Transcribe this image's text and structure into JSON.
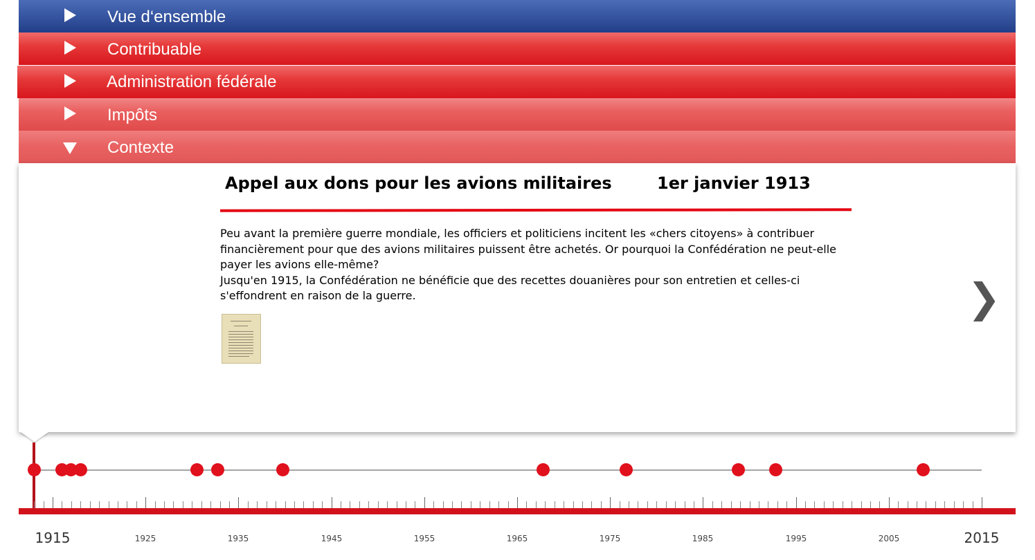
{
  "accordion": [
    {
      "label": "Vue d‘ensemble",
      "expanded": false
    },
    {
      "label": "Contribuable",
      "expanded": false
    },
    {
      "label": "Administration fédérale",
      "expanded": false
    },
    {
      "label": "Impôts",
      "expanded": false
    },
    {
      "label": "Contexte",
      "expanded": true
    }
  ],
  "event": {
    "title": "Appel aux dons pour les avions militaires",
    "date": "1er janvier 1913",
    "paragraph1": "Peu avant la première guerre mondiale, les officiers et politiciens incitent les «chers citoyens» à contribuer financièrement pour que des avions militaires puissent être achetés. Or pourquoi la Confédération ne peut-elle payer les avions elle-même?",
    "paragraph2": "Jusqu'en 1915, la Confédération ne bénéficie que des recettes douanières pour son entretien et celles-ci s'effondrent en raison de la guerre."
  },
  "icons": {
    "next": "chevron-right-icon",
    "document": "document-thumbnail"
  },
  "colors": {
    "accent_red": "#e0101c",
    "header_blue": "#223e88"
  },
  "timeline": {
    "start_year": 1913,
    "end_year": 2015,
    "selected_year": 1913,
    "labels": [
      "1915",
      "1925",
      "1935",
      "1945",
      "1955",
      "1965",
      "1975",
      "1985",
      "1995",
      "2005",
      "2015"
    ],
    "event_years": [
      1913,
      1916,
      1917,
      1918,
      1930.5,
      1932.8,
      1939.8,
      1967.8,
      1976.7,
      1988.8,
      1992.8,
      2008.7
    ]
  }
}
